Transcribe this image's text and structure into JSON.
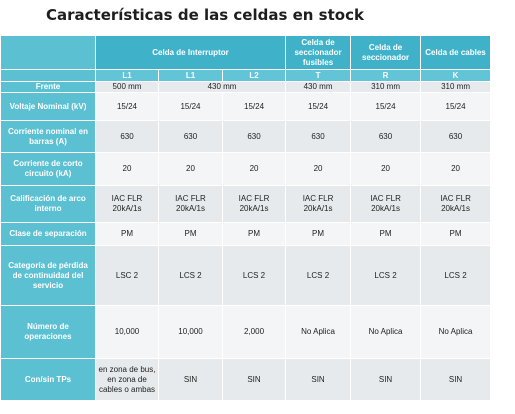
{
  "title": "Características de las celdas en stock",
  "table": {
    "groups": [
      "Celda de Interruptor",
      "Celda de seccionador fusibles",
      "Celda de seccionador",
      "Celda de cables"
    ],
    "codes": [
      "L1",
      "L1",
      "L2",
      "T",
      "R",
      "K"
    ],
    "frente": {
      "label": "Frente",
      "cells": [
        "500 mm",
        "430 mm",
        "430 mm",
        "310 mm",
        "310 mm"
      ]
    },
    "rows": [
      {
        "label": "Voltaje Nominal (kV)",
        "cells": [
          "15/24",
          "15/24",
          "15/24",
          "15/24",
          "15/24",
          "15/24"
        ]
      },
      {
        "label": "Corriente nominal en barras (A)",
        "cells": [
          "630",
          "630",
          "630",
          "630",
          "630",
          "630"
        ]
      },
      {
        "label": "Corriente de corto circuito (kA)",
        "cells": [
          "20",
          "20",
          "20",
          "20",
          "20",
          "20"
        ]
      },
      {
        "label": "Calificación de arco interno",
        "cells": [
          [
            "IAC FLR",
            "20kA/1s"
          ],
          [
            "IAC FLR",
            "20kA/1s"
          ],
          [
            "IAC FLR",
            "20kA/1s"
          ],
          [
            "IAC FLR",
            "20kA/1s"
          ],
          [
            "IAC FLR",
            "20kA/1s"
          ],
          [
            "IAC FLR",
            "20kA/1s"
          ]
        ]
      },
      {
        "label": "Clase de separación",
        "cells": [
          "PM",
          "PM",
          "PM",
          "PM",
          "PM",
          "PM"
        ]
      },
      {
        "label": "Categoría de pérdida de continuidad del servicio",
        "cells": [
          "LSC 2",
          "LCS 2",
          "LCS 2",
          "LCS 2",
          "LCS 2",
          "LCS 2"
        ]
      },
      {
        "label": "Número de operaciones",
        "cells": [
          "10,000",
          "10,000",
          "2,000",
          "No Aplica",
          "No Aplica",
          "No Aplica"
        ]
      },
      {
        "label": "Con/sin TPs",
        "cells": [
          [
            "en zona de bus,",
            "en zona de",
            "cables o ambas"
          ],
          "SIN",
          "SIN",
          "SIN",
          "SIN",
          "SIN"
        ]
      }
    ]
  }
}
